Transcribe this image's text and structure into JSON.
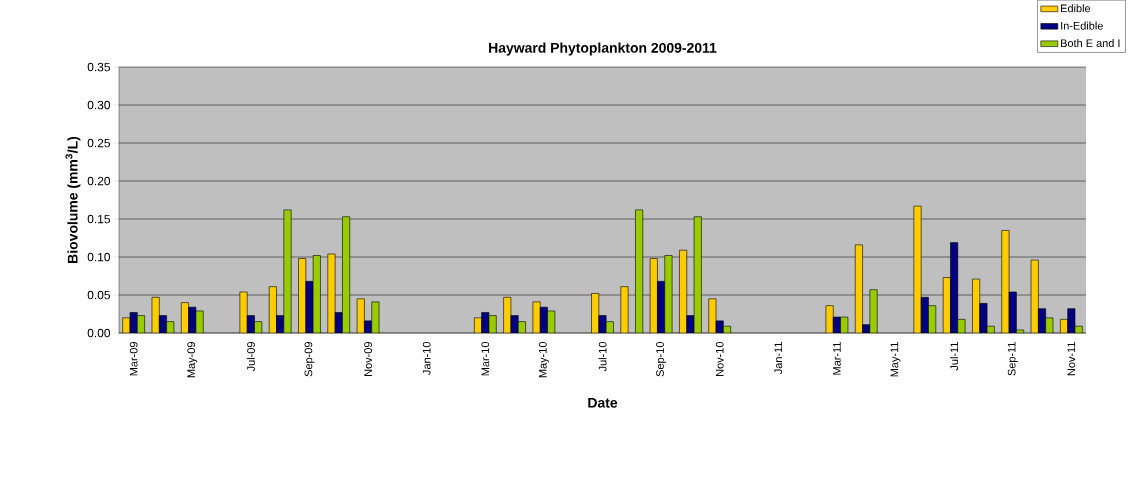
{
  "chart_data": {
    "type": "bar",
    "title": "Hayward Phytoplankton 2009-2011",
    "xlabel": "Date",
    "ylabel": "Biovolume (mm$^{3}$/L)",
    "categories": [
      "Mar-09",
      null,
      "May-09",
      null,
      "Jul-09",
      null,
      "Sep-09",
      null,
      "Nov-09",
      null,
      "Jan-10",
      null,
      "Mar-10",
      null,
      "May-10",
      null,
      "Jul-10",
      null,
      "Sep-10",
      null,
      "Nov-10",
      null,
      "Jan-11",
      null,
      "Mar-11",
      null,
      "May-11",
      null,
      "Jul-11",
      null,
      "Sep-11",
      null,
      "Nov-11"
    ],
    "series": [
      {
        "name": "Edible",
        "color": "#ffcc00",
        "values": [
          0.02,
          0.047,
          0.04,
          null,
          0.054,
          0.061,
          0.098,
          0.104,
          0.045,
          null,
          null,
          null,
          0.02,
          0.047,
          0.041,
          null,
          0.052,
          0.061,
          0.098,
          0.109,
          0.045,
          null,
          null,
          null,
          0.036,
          0.116,
          null,
          0.167,
          0.073,
          0.071,
          0.135,
          0.096,
          0.018
        ]
      },
      {
        "name": "In-Edible",
        "color": "#000080",
        "values": [
          0.027,
          0.023,
          0.034,
          null,
          0.023,
          0.023,
          0.068,
          0.027,
          0.016,
          null,
          null,
          null,
          0.027,
          0.023,
          0.034,
          null,
          0.023,
          null,
          0.068,
          0.023,
          0.016,
          null,
          null,
          null,
          0.021,
          0.011,
          null,
          0.047,
          0.119,
          0.039,
          0.054,
          0.032,
          0.032
        ]
      },
      {
        "name": "Both E and I",
        "color": "#99cc00",
        "values": [
          0.023,
          0.015,
          0.029,
          null,
          0.015,
          0.162,
          0.102,
          0.153,
          0.041,
          null,
          null,
          null,
          0.023,
          0.015,
          0.029,
          null,
          0.015,
          0.162,
          0.102,
          0.153,
          0.009,
          null,
          null,
          null,
          0.021,
          0.057,
          null,
          0.036,
          0.018,
          0.009,
          0.004,
          0.02,
          0.009
        ]
      }
    ],
    "ylim": [
      0,
      0.35
    ],
    "yticks": [
      {
        "value": 0,
        "label": "0.00"
      },
      {
        "value": 0.05,
        "label": "0.05"
      },
      {
        "value": 0.1,
        "label": "0.10"
      },
      {
        "value": 0.15,
        "label": "0.15"
      },
      {
        "value": 0.2,
        "label": "0.20"
      },
      {
        "value": 0.25,
        "label": "0.25"
      },
      {
        "value": 0.3,
        "label": "0.30"
      },
      {
        "value": 0.35,
        "label": "0.35"
      }
    ],
    "grid": "y",
    "legend": "top right"
  }
}
